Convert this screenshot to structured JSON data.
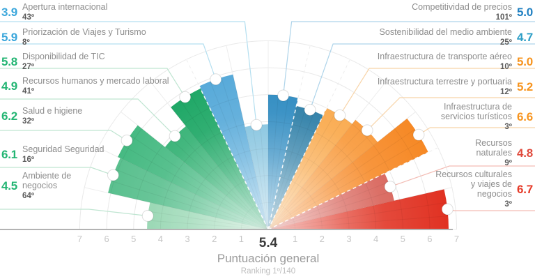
{
  "chart_data": {
    "type": "polar-fan",
    "max_value": 7,
    "center": {
      "score": "5.4",
      "label": "Puntuación general",
      "rank": "Ranking 1º/140"
    },
    "axis_ticks_left": [
      "7",
      "6",
      "5",
      "4",
      "3",
      "2",
      "1"
    ],
    "axis_ticks_right": [
      "1",
      "2",
      "3",
      "4",
      "5",
      "6",
      "7"
    ],
    "subindex_dashed_boundaries_after": [
      4,
      7,
      8,
      11
    ],
    "colors": {
      "grid": "#e9e9e9",
      "grid_radial": "#ededed",
      "baseline": "#b3b3b3",
      "axis_tick": "#c6c6c6",
      "title_text": "#8d8d8d",
      "rank_text": "#5a5a5a"
    },
    "pillars": [
      {
        "name": "Ambiente de negocios",
        "name_lines": [
          "Ambiente de",
          "negocios"
        ],
        "value": 4.5,
        "score_display": "4.5",
        "rank": "64º",
        "side": "left",
        "wedge_color": "#8dd3ab",
        "score_color": "#23b573",
        "leader_color": "#bfe5d1"
      },
      {
        "name": "Seguridad Seguridad",
        "name_lines": [
          "Seguridad Seguridad"
        ],
        "value": 6.1,
        "score_display": "6.1",
        "rank": "16º",
        "side": "left",
        "wedge_color": "#52bd89",
        "score_color": "#23b573",
        "leader_color": "#bfe5d1"
      },
      {
        "name": "Salud e higiene",
        "name_lines": [
          "Salud e higiene"
        ],
        "value": 6.2,
        "score_display": "6.2",
        "rank": "32º",
        "side": "left",
        "wedge_color": "#3eb77d",
        "score_color": "#23b573",
        "leader_color": "#bfe5d1"
      },
      {
        "name": "Recursos humanos y mercado laboral",
        "name_lines": [
          "Recursos humanos y mercado laboral"
        ],
        "value": 4.9,
        "score_display": "4.9",
        "rank": "41º",
        "side": "left",
        "wedge_color": "#28ad6c",
        "score_color": "#23b573",
        "leader_color": "#bfe5d1"
      },
      {
        "name": "Disponibilidad de TIC",
        "name_lines": [
          "Disponibilidad de TIC"
        ],
        "value": 5.8,
        "score_display": "5.8",
        "rank": "27º",
        "side": "left",
        "wedge_color": "#11a25d",
        "score_color": "#23b573",
        "leader_color": "#bfe5d1"
      },
      {
        "name": "Priorización de Viajes y Turismo",
        "name_lines": [
          "Priorización de Viajes y Turismo"
        ],
        "value": 5.9,
        "score_display": "5.9",
        "rank": "8º",
        "side": "left",
        "wedge_color": "#4ea5d7",
        "score_color": "#3aa6db",
        "leader_color": "#b4dff0"
      },
      {
        "name": "Apertura internacional",
        "name_lines": [
          "Apertura internacional"
        ],
        "value": 3.9,
        "score_display": "3.9",
        "rank": "43º",
        "side": "left",
        "wedge_color": "#74bcdb",
        "score_color": "#3aa6db",
        "leader_color": "#b4dff0"
      },
      {
        "name": "Competitividad de precios",
        "name_lines": [
          "Competitividad de precios"
        ],
        "value": 5.0,
        "score_display": "5.0",
        "rank": "101º",
        "side": "right",
        "wedge_color": "#2083bd",
        "score_color": "#2080c2",
        "leader_color": "#aed4ea"
      },
      {
        "name": "Sostenibilidad del medio ambiente",
        "name_lines": [
          "Sostenibilidad del medio ambiente"
        ],
        "value": 4.7,
        "score_display": "4.7",
        "rank": "25º",
        "side": "right",
        "wedge_color": "#1d74a0",
        "score_color": "#2d9ec6",
        "leader_color": "#aed4ea"
      },
      {
        "name": "Infraestructura de transporte aéreo",
        "name_lines": [
          "Infraestructura de transporte aéreo"
        ],
        "value": 5.0,
        "score_display": "5.0",
        "rank": "10º",
        "side": "right",
        "wedge_color": "#f9a441",
        "score_color": "#f7941e",
        "leader_color": "#f8d4a8"
      },
      {
        "name": "Infraestructura terrestre y portuaria",
        "name_lines": [
          "Infraestructura terrestre y portuaria"
        ],
        "value": 5.2,
        "score_display": "5.2",
        "rank": "12º",
        "side": "right",
        "wedge_color": "#f89330",
        "score_color": "#f7941e",
        "leader_color": "#f8d4a8"
      },
      {
        "name": "Infraestructura de servicios turísticos",
        "name_lines": [
          "Infraestructura de",
          "servicios turísticos"
        ],
        "value": 6.6,
        "score_display": "6.6",
        "rank": "3º",
        "side": "right",
        "wedge_color": "#f68620",
        "score_color": "#f7941e",
        "leader_color": "#f8d4a8"
      },
      {
        "name": "Recursos naturales",
        "name_lines": [
          "Recursos",
          "naturales"
        ],
        "value": 4.8,
        "score_display": "4.8",
        "rank": "9º",
        "side": "right",
        "wedge_color": "#d65a50",
        "score_color": "#e04a3c",
        "leader_color": "#f3bcb4"
      },
      {
        "name": "Recursos culturales y viajes de negocios",
        "name_lines": [
          "Recursos culturales",
          "y viajes de",
          "negocios"
        ],
        "value": 6.7,
        "score_display": "6.7",
        "rank": "3º",
        "side": "right",
        "wedge_color": "#e02e1e",
        "score_color": "#e63a28",
        "leader_color": "#f3bcb4"
      }
    ]
  }
}
